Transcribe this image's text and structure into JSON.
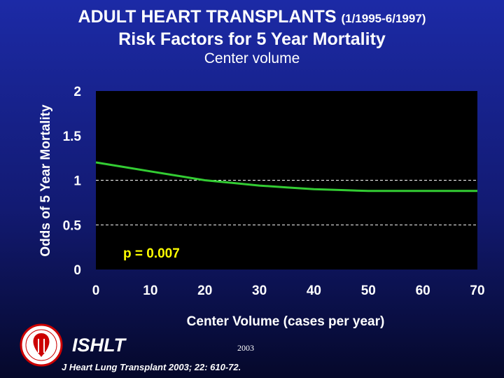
{
  "slide": {
    "title_main": "ADULT HEART TRANSPLANTS",
    "title_dates": "(1/1995-6/1997)",
    "title_line2": "Risk Factors for 5 Year Mortality",
    "subtitle": "Center volume",
    "org": "ISHLT",
    "year": "2003",
    "citation": "J Heart Lung Transplant 2003; 22: 610-72."
  },
  "colors": {
    "plot_background": "#000000",
    "curve": "#33cc33",
    "annotation": "#ffff00",
    "text": "#ffffff",
    "reference_lines": "#ffffff"
  },
  "chart_data": {
    "type": "line",
    "title": "Center volume",
    "xlabel": "Center Volume (cases per year)",
    "ylabel": "Odds of 5 Year Mortality",
    "xlim": [
      0,
      70
    ],
    "ylim": [
      0,
      2
    ],
    "x_ticks": [
      "0",
      "10",
      "20",
      "30",
      "40",
      "50",
      "60",
      "70"
    ],
    "y_ticks": [
      "0",
      "0.5",
      "1",
      "1.5",
      "2"
    ],
    "dashed_reference_y": [
      0.5,
      1
    ],
    "annotation": "p = 0.007",
    "series": [
      {
        "x": [
          0,
          5,
          10,
          15,
          20,
          25,
          30,
          35,
          40,
          45,
          50,
          55,
          60,
          65,
          70
        ],
        "values": [
          1.2,
          1.15,
          1.1,
          1.05,
          1.0,
          0.97,
          0.94,
          0.92,
          0.9,
          0.89,
          0.88,
          0.88,
          0.88,
          0.88,
          0.88
        ]
      }
    ],
    "grid": false,
    "legend": "none"
  }
}
